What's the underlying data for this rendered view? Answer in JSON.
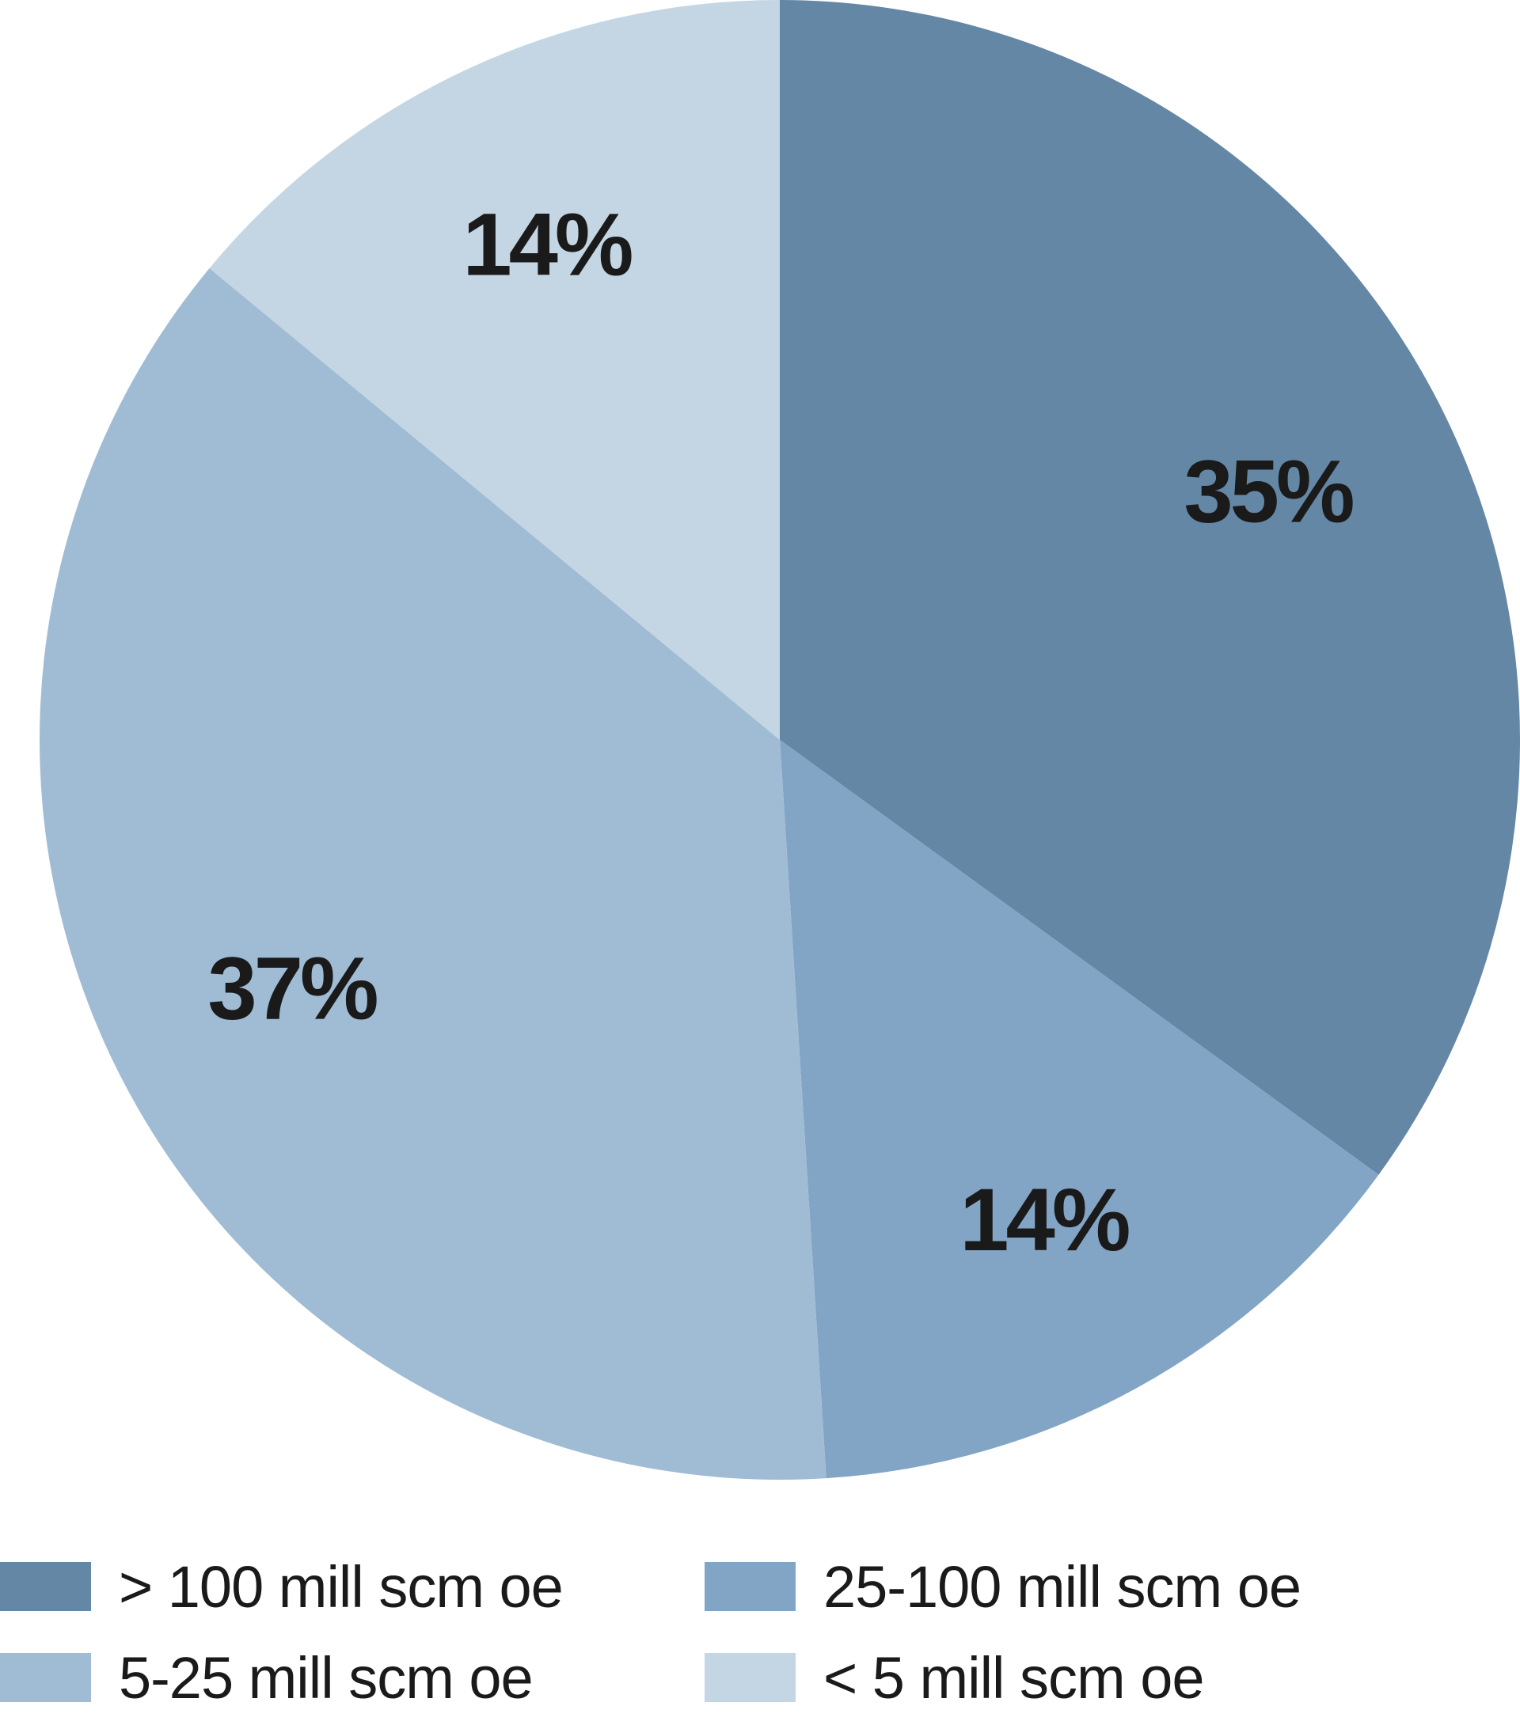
{
  "chart_data": {
    "type": "pie",
    "start_angle": "top, clockwise",
    "slices": [
      {
        "label": "> 100 mill scm oe",
        "value": 35,
        "display": "35%",
        "color": "#6587a6"
      },
      {
        "label": "25-100 mill scm oe",
        "value": 14,
        "display": "14%",
        "color": "#82a5c6"
      },
      {
        "label": "5-25 mill scm oe",
        "value": 37,
        "display": "37%",
        "color": "#a0bcd4"
      },
      {
        "label": "< 5 mill scm oe",
        "value": 14,
        "display": "14%",
        "color": "#c4d6e3"
      }
    ],
    "legend_position": "bottom",
    "title": "",
    "subtitle": ""
  }
}
